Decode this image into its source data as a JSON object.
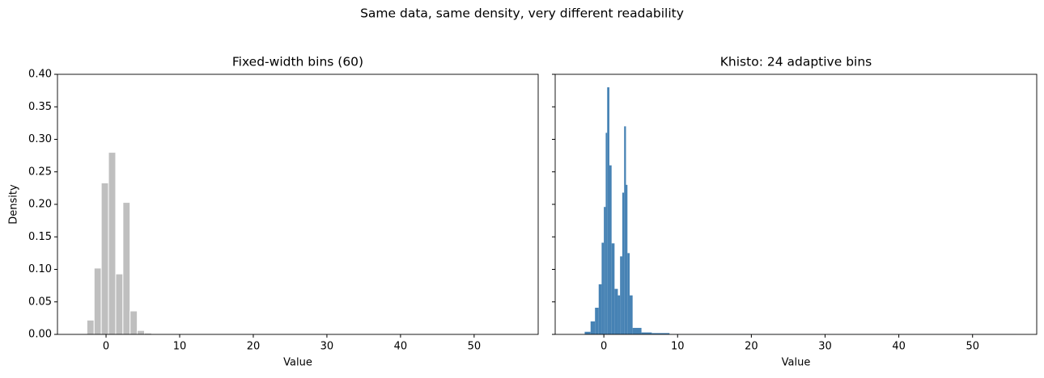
{
  "title": "Same data, same density, very different readability",
  "chart_data": [
    {
      "type": "histogram",
      "title": "Fixed-width bins (60)",
      "xlabel": "Value",
      "ylabel": "Density",
      "color": "#bfbfbf",
      "edgecolor": "#ffffff",
      "bins": [
        -2.6,
        -1.62,
        -0.65,
        0.33,
        1.31,
        2.29,
        3.26,
        4.24,
        5.22,
        6.19,
        7.17,
        8.15,
        9.12,
        10.1,
        11.08,
        12.06,
        13.03,
        14.01,
        14.99,
        15.96,
        16.94,
        17.92,
        18.89,
        19.87,
        20.85,
        21.83,
        22.8,
        23.78,
        24.76,
        25.73,
        26.71,
        27.69,
        28.66,
        29.64,
        30.62,
        31.6,
        32.57,
        33.55,
        34.53,
        35.5,
        36.48,
        37.46,
        38.43,
        39.41,
        40.39,
        41.37,
        42.34,
        43.32,
        44.3,
        45.27,
        46.25,
        47.23,
        48.2,
        49.18,
        50.16,
        51.14,
        52.11,
        53.09,
        54.07,
        55.04,
        56.02
      ],
      "counts": [
        0.022,
        0.102,
        0.233,
        0.28,
        0.093,
        0.203,
        0.036,
        0.006,
        0.002,
        0,
        0,
        0,
        0,
        0,
        0,
        0,
        0,
        0,
        0,
        0,
        0,
        0,
        0,
        0,
        0,
        0,
        0,
        0,
        0,
        0,
        0,
        0,
        0,
        0,
        0,
        0,
        0,
        0,
        0,
        0,
        0,
        0,
        0,
        0,
        0,
        0,
        0,
        0,
        0,
        0,
        0,
        0,
        0,
        0,
        0,
        0,
        0,
        0,
        0,
        0
      ],
      "xlim": [
        -6.6,
        58.7
      ],
      "xticks": [
        0,
        10,
        20,
        30,
        40,
        50
      ],
      "ylim": [
        0,
        0.4
      ],
      "yticks": [
        {
          "value": 0,
          "label": "0.00"
        },
        {
          "value": 0.05,
          "label": "0.05"
        },
        {
          "value": 0.1,
          "label": "0.10"
        },
        {
          "value": 0.15,
          "label": "0.15"
        },
        {
          "value": 0.2,
          "label": "0.20"
        },
        {
          "value": 0.25,
          "label": "0.25"
        },
        {
          "value": 0.3,
          "label": "0.30"
        },
        {
          "value": 0.35,
          "label": "0.35"
        },
        {
          "value": 0.4,
          "label": "0.40"
        }
      ]
    },
    {
      "type": "histogram",
      "title": "Khisto: 24 adaptive bins",
      "xlabel": "Value",
      "color": "#4682b4",
      "bins": [
        -2.6,
        -1.8,
        -1.2,
        -0.7,
        -0.3,
        0.0,
        0.25,
        0.45,
        0.75,
        1.05,
        1.45,
        1.9,
        2.2,
        2.5,
        2.75,
        3.0,
        3.2,
        3.5,
        3.9,
        5.1,
        6.5,
        8.9,
        20,
        40,
        56
      ],
      "counts": [
        0.004,
        0.02,
        0.041,
        0.077,
        0.141,
        0.196,
        0.31,
        0.38,
        0.26,
        0.14,
        0.07,
        0.06,
        0.12,
        0.218,
        0.32,
        0.23,
        0.125,
        0.06,
        0.01,
        0.003,
        0.002,
        0.0003,
        0.0001,
        0.0001
      ],
      "xlim": [
        -6.6,
        58.7
      ],
      "xticks": [
        0,
        10,
        20,
        30,
        40,
        50
      ],
      "ylim": [
        0,
        0.4
      ],
      "yticks": [
        0,
        0.05,
        0.1,
        0.15,
        0.2,
        0.25,
        0.3,
        0.35,
        0.4
      ]
    }
  ]
}
